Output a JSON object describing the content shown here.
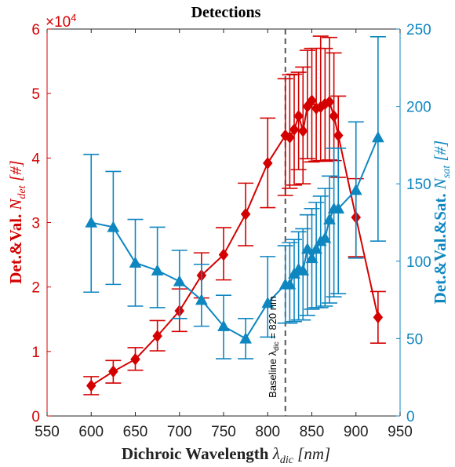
{
  "chart_data": {
    "type": "line",
    "title": "Detections",
    "xlabel": {
      "main": "Dichroic Wavelength ",
      "sym": "λ",
      "sub": "dic",
      "unit": " [nm]"
    },
    "ylabel_left": {
      "main": "Det.&Val. ",
      "sym": "N",
      "sub": "det",
      "unit": " [#]"
    },
    "ylabel_right": {
      "main": "Det.&Val.&Sat. ",
      "sym": "N",
      "sub": "sat",
      "unit": " [#]"
    },
    "left_exponent": {
      "base": "×10",
      "power": "4"
    },
    "xlim": [
      550,
      950
    ],
    "ylim_left": [
      0,
      60000
    ],
    "ylim_right": [
      0,
      250
    ],
    "x_ticks": [
      "550",
      "600",
      "650",
      "700",
      "750",
      "800",
      "850",
      "900",
      "950"
    ],
    "y_left_ticks": [
      "0",
      "1",
      "2",
      "3",
      "4",
      "5",
      "6"
    ],
    "y_right_ticks": [
      "0",
      "50",
      "100",
      "150",
      "200",
      "250"
    ],
    "grid": false,
    "colors": {
      "left": "#d40000",
      "right": "#0e86c0"
    },
    "baseline": {
      "x": 820,
      "label": "Baseline λ",
      "label_sub": "dic",
      "label_rest": " = 820 nm"
    },
    "series": [
      {
        "axis": "left",
        "marker": "diamond",
        "x": [
          600,
          625,
          650,
          675,
          700,
          725,
          750,
          775,
          800,
          820,
          825,
          830,
          835,
          840,
          845,
          850,
          855,
          860,
          865,
          870,
          875,
          880,
          900,
          925
        ],
        "y": [
          4700,
          6900,
          8800,
          12400,
          16300,
          21800,
          25000,
          31300,
          39200,
          43500,
          43200,
          44400,
          46500,
          44200,
          48000,
          48900,
          47700,
          47900,
          48400,
          48700,
          46500,
          43500,
          30800,
          15300
        ],
        "err_low": [
          3300,
          5100,
          7100,
          10100,
          13100,
          18300,
          21100,
          26400,
          32300,
          34200,
          35300,
          35800,
          38200,
          36000,
          39900,
          39400,
          39500,
          39600,
          39500,
          39700,
          39600,
          37000,
          24700,
          11300
        ],
        "err_high": [
          6100,
          8600,
          10600,
          14800,
          19700,
          25300,
          29200,
          36100,
          46200,
          52300,
          52900,
          53000,
          53300,
          54100,
          56700,
          57000,
          57000,
          58900,
          57000,
          58700,
          56300,
          49600,
          36800,
          19300
        ]
      },
      {
        "axis": "right",
        "marker": "triangle",
        "x": [
          600,
          625,
          650,
          675,
          700,
          725,
          750,
          775,
          800,
          820,
          825,
          830,
          835,
          840,
          845,
          850,
          855,
          860,
          865,
          870,
          875,
          880,
          900,
          925
        ],
        "y": [
          125,
          122,
          99,
          94,
          87,
          75,
          58,
          50,
          73,
          85,
          85,
          92,
          95,
          94,
          108,
          102,
          108,
          113,
          115,
          127,
          134,
          134,
          146,
          180
        ],
        "err_low": [
          80,
          85,
          71,
          70,
          63,
          58,
          37,
          37,
          51,
          60,
          60,
          61,
          62,
          62,
          65,
          69,
          70,
          70,
          71,
          73,
          77,
          79,
          102,
          113
        ],
        "err_high": [
          169,
          158,
          127,
          122,
          107,
          98,
          78,
          63,
          103,
          110,
          112,
          114,
          119,
          121,
          130,
          134,
          138,
          142,
          147,
          155,
          173,
          173,
          190,
          245
        ]
      }
    ]
  }
}
